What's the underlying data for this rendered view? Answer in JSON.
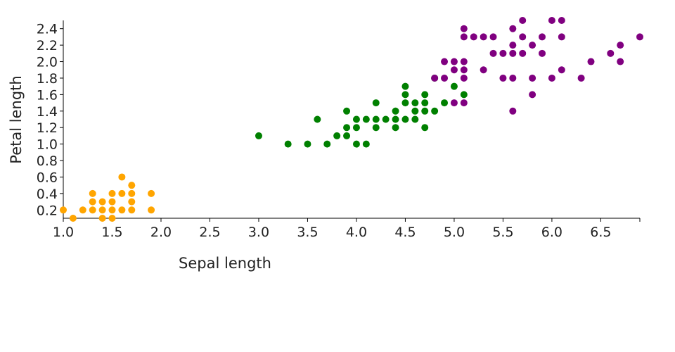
{
  "chart_data": {
    "type": "scatter",
    "title": "",
    "xlabel": "Sepal length",
    "ylabel": "Petal length",
    "xlim": [
      1.0,
      6.9
    ],
    "ylim": [
      0.1,
      2.5
    ],
    "grid": false,
    "legend": "none",
    "x_ticks": [
      "1.0",
      "1.5",
      "2.0",
      "2.5",
      "3.0",
      "3.5",
      "4.0",
      "4.5",
      "5.0",
      "5.5",
      "6.0",
      "6.5"
    ],
    "y_ticks": [
      "0.2",
      "0.4",
      "0.6",
      "0.8",
      "1.0",
      "1.2",
      "1.4",
      "1.6",
      "1.8",
      "2.0",
      "2.2",
      "2.4"
    ],
    "series": [
      {
        "color": "#FFA500",
        "points": [
          [
            1.0,
            0.2
          ],
          [
            1.1,
            0.1
          ],
          [
            1.2,
            0.2
          ],
          [
            1.3,
            0.4
          ],
          [
            1.3,
            0.3
          ],
          [
            1.3,
            0.2
          ],
          [
            1.4,
            0.3
          ],
          [
            1.4,
            0.2
          ],
          [
            1.4,
            0.1
          ],
          [
            1.5,
            0.4
          ],
          [
            1.5,
            0.3
          ],
          [
            1.5,
            0.2
          ],
          [
            1.5,
            0.1
          ],
          [
            1.6,
            0.6
          ],
          [
            1.6,
            0.4
          ],
          [
            1.6,
            0.2
          ],
          [
            1.7,
            0.5
          ],
          [
            1.7,
            0.4
          ],
          [
            1.7,
            0.3
          ],
          [
            1.7,
            0.2
          ],
          [
            1.9,
            0.4
          ],
          [
            1.9,
            0.2
          ]
        ]
      },
      {
        "color": "#008000",
        "points": [
          [
            3.0,
            1.1
          ],
          [
            3.3,
            1.0
          ],
          [
            3.5,
            1.0
          ],
          [
            3.6,
            1.3
          ],
          [
            3.7,
            1.0
          ],
          [
            3.8,
            1.1
          ],
          [
            3.9,
            1.4
          ],
          [
            3.9,
            1.2
          ],
          [
            3.9,
            1.1
          ],
          [
            4.0,
            1.3
          ],
          [
            4.0,
            1.2
          ],
          [
            4.0,
            1.0
          ],
          [
            4.1,
            1.3
          ],
          [
            4.1,
            1.0
          ],
          [
            4.2,
            1.5
          ],
          [
            4.2,
            1.3
          ],
          [
            4.2,
            1.2
          ],
          [
            4.3,
            1.3
          ],
          [
            4.4,
            1.4
          ],
          [
            4.4,
            1.3
          ],
          [
            4.4,
            1.2
          ],
          [
            4.5,
            1.7
          ],
          [
            4.5,
            1.6
          ],
          [
            4.5,
            1.5
          ],
          [
            4.5,
            1.3
          ],
          [
            4.6,
            1.5
          ],
          [
            4.6,
            1.4
          ],
          [
            4.6,
            1.3
          ],
          [
            4.7,
            1.6
          ],
          [
            4.7,
            1.5
          ],
          [
            4.7,
            1.4
          ],
          [
            4.7,
            1.2
          ],
          [
            4.8,
            1.8
          ],
          [
            4.8,
            1.4
          ],
          [
            4.9,
            1.5
          ],
          [
            5.0,
            1.7
          ],
          [
            5.1,
            1.6
          ]
        ]
      },
      {
        "color": "#800080",
        "points": [
          [
            4.8,
            1.8
          ],
          [
            4.9,
            2.0
          ],
          [
            4.9,
            1.8
          ],
          [
            5.0,
            2.0
          ],
          [
            5.0,
            1.9
          ],
          [
            5.0,
            1.5
          ],
          [
            5.1,
            2.4
          ],
          [
            5.1,
            2.3
          ],
          [
            5.1,
            2.0
          ],
          [
            5.1,
            1.9
          ],
          [
            5.1,
            1.8
          ],
          [
            5.1,
            1.5
          ],
          [
            5.2,
            2.3
          ],
          [
            5.3,
            2.3
          ],
          [
            5.3,
            1.9
          ],
          [
            5.4,
            2.3
          ],
          [
            5.4,
            2.1
          ],
          [
            5.5,
            2.1
          ],
          [
            5.5,
            1.8
          ],
          [
            5.6,
            2.4
          ],
          [
            5.6,
            2.2
          ],
          [
            5.6,
            2.1
          ],
          [
            5.6,
            1.8
          ],
          [
            5.6,
            1.4
          ],
          [
            5.7,
            2.5
          ],
          [
            5.7,
            2.3
          ],
          [
            5.7,
            2.1
          ],
          [
            5.8,
            2.2
          ],
          [
            5.8,
            1.8
          ],
          [
            5.8,
            1.6
          ],
          [
            5.9,
            2.3
          ],
          [
            5.9,
            2.1
          ],
          [
            6.0,
            2.5
          ],
          [
            6.0,
            1.8
          ],
          [
            6.1,
            2.5
          ],
          [
            6.1,
            2.3
          ],
          [
            6.1,
            1.9
          ],
          [
            6.3,
            1.8
          ],
          [
            6.4,
            2.0
          ],
          [
            6.6,
            2.1
          ],
          [
            6.7,
            2.2
          ],
          [
            6.7,
            2.0
          ],
          [
            6.9,
            2.3
          ]
        ]
      }
    ]
  }
}
